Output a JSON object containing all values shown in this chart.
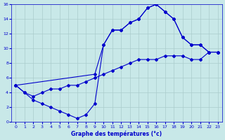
{
  "xlabel": "Graphe des températures (°c)",
  "bg_color": "#c8e8e8",
  "grid_color": "#aacccc",
  "line_color": "#0000cc",
  "xlim": [
    -0.5,
    23.5
  ],
  "ylim": [
    0,
    16
  ],
  "xticks": [
    0,
    1,
    2,
    3,
    4,
    5,
    6,
    7,
    8,
    9,
    10,
    11,
    12,
    13,
    14,
    15,
    16,
    17,
    18,
    19,
    20,
    21,
    22,
    23
  ],
  "yticks": [
    0,
    2,
    4,
    6,
    8,
    10,
    12,
    14,
    16
  ],
  "line1_x": [
    0,
    1,
    2,
    3,
    4,
    5,
    6,
    7,
    8,
    9,
    10,
    11,
    12,
    13,
    14,
    15,
    16,
    17,
    18,
    19,
    20,
    21,
    22,
    23
  ],
  "line1_y": [
    5.0,
    4.0,
    3.0,
    2.5,
    2.0,
    1.5,
    1.0,
    0.5,
    1.0,
    2.5,
    10.5,
    12.5,
    12.5,
    13.5,
    14.0,
    15.5,
    16.0,
    15.0,
    14.0,
    11.5,
    10.5,
    10.5,
    9.5,
    9.5
  ],
  "line2_x": [
    0,
    1,
    2,
    3,
    4,
    5,
    6,
    7,
    8,
    9,
    10,
    11,
    12,
    13,
    14,
    15,
    16,
    17,
    18,
    19,
    20,
    21,
    22,
    23
  ],
  "line2_y": [
    5.0,
    4.0,
    3.5,
    4.0,
    4.5,
    4.5,
    5.0,
    5.0,
    5.5,
    6.0,
    6.5,
    7.0,
    7.5,
    8.0,
    8.5,
    8.5,
    8.5,
    9.0,
    9.0,
    9.0,
    8.5,
    8.5,
    9.5,
    9.5
  ],
  "line3_x": [
    0,
    9,
    10,
    11,
    12,
    13,
    14,
    15,
    16,
    17,
    18,
    19,
    20,
    21,
    22,
    23
  ],
  "line3_y": [
    5.0,
    6.5,
    10.5,
    12.5,
    12.5,
    13.5,
    14.0,
    15.5,
    16.0,
    15.0,
    14.0,
    11.5,
    10.5,
    10.5,
    9.5,
    9.5
  ]
}
